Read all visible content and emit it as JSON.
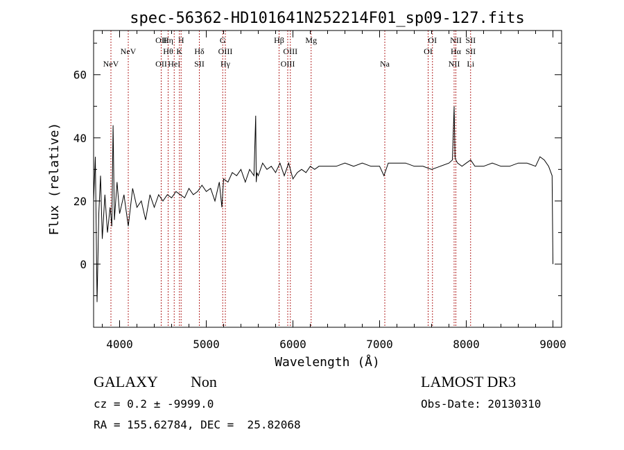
{
  "chart_data": {
    "type": "line",
    "title": "spec-56362-HD101641N252214F01_sp09-127.fits",
    "xlabel": "Wavelength (Å)",
    "ylabel": "Flux (relative)",
    "xlim": [
      3700,
      9100
    ],
    "ylim": [
      -20,
      74
    ],
    "xticks": [
      4000,
      5000,
      6000,
      7000,
      8000,
      9000
    ],
    "xtick_labels": [
      "4000",
      "5000",
      "6000",
      "7000",
      "8000",
      "9000"
    ],
    "yticks": [
      0,
      20,
      40,
      60
    ],
    "ytick_labels": [
      "0",
      "20",
      "40",
      "60"
    ],
    "series": [
      {
        "name": "flux",
        "x": [
          3700,
          3720,
          3740,
          3760,
          3780,
          3800,
          3830,
          3860,
          3890,
          3910,
          3925,
          3940,
          3970,
          4000,
          4050,
          4100,
          4150,
          4200,
          4250,
          4300,
          4350,
          4400,
          4450,
          4500,
          4550,
          4600,
          4650,
          4700,
          4750,
          4800,
          4850,
          4900,
          4950,
          5000,
          5050,
          5100,
          5150,
          5180,
          5200,
          5250,
          5300,
          5350,
          5400,
          5450,
          5500,
          5550,
          5570,
          5577,
          5585,
          5600,
          5650,
          5700,
          5750,
          5800,
          5850,
          5900,
          5950,
          6000,
          6050,
          6100,
          6150,
          6200,
          6250,
          6300,
          6400,
          6500,
          6600,
          6700,
          6800,
          6900,
          7000,
          7050,
          7100,
          7200,
          7300,
          7400,
          7500,
          7600,
          7700,
          7800,
          7840,
          7860,
          7870,
          7880,
          7900,
          7950,
          8000,
          8050,
          8100,
          8200,
          8300,
          8400,
          8500,
          8600,
          8700,
          8800,
          8850,
          8900,
          8950,
          8990,
          9000
        ],
        "y": [
          20,
          34,
          -12,
          16,
          28,
          8,
          22,
          10,
          18,
          12,
          44,
          14,
          26,
          16,
          22,
          12,
          24,
          18,
          20,
          14,
          22,
          18,
          22,
          20,
          22,
          21,
          23,
          22,
          21,
          24,
          22,
          23,
          25,
          23,
          24,
          20,
          26,
          18,
          27,
          26,
          29,
          28,
          30,
          26,
          30,
          28,
          47,
          26,
          29,
          28,
          32,
          30,
          31,
          29,
          32,
          28,
          32,
          27,
          29,
          30,
          29,
          31,
          30,
          31,
          31,
          31,
          32,
          31,
          32,
          31,
          31,
          28,
          32,
          32,
          32,
          31,
          31,
          30,
          31,
          32,
          33,
          50,
          34,
          33,
          32,
          31,
          32,
          33,
          31,
          31,
          32,
          31,
          31,
          32,
          32,
          31,
          34,
          33,
          31,
          28,
          0
        ]
      }
    ],
    "lines": [
      {
        "name": "NeV",
        "wavelength": 3900,
        "label_row": 3
      },
      {
        "name": "NeV",
        "wavelength": 4100,
        "label_row": 2
      },
      {
        "name": "OII",
        "wavelength": 4480,
        "label_row": 1
      },
      {
        "name": "OII",
        "wavelength": 4480,
        "label_row": 3
      },
      {
        "name": "Hη",
        "wavelength": 4560,
        "label_row": 1
      },
      {
        "name": "Hθ",
        "wavelength": 4560,
        "label_row": 2
      },
      {
        "name": "HeI",
        "wavelength": 4630,
        "label_row": 3
      },
      {
        "name": "H",
        "wavelength": 4710,
        "label_row": 1
      },
      {
        "name": "K",
        "wavelength": 4690,
        "label_row": 2
      },
      {
        "name": "Hδ",
        "wavelength": 4920,
        "label_row": 2
      },
      {
        "name": "SII",
        "wavelength": 4920,
        "label_row": 3
      },
      {
        "name": "G",
        "wavelength": 5190,
        "label_row": 1
      },
      {
        "name": "OIII",
        "wavelength": 5220,
        "label_row": 2
      },
      {
        "name": "Hγ",
        "wavelength": 5220,
        "label_row": 3
      },
      {
        "name": "Hβ",
        "wavelength": 5840,
        "label_row": 1
      },
      {
        "name": "OIII",
        "wavelength": 5970,
        "label_row": 2
      },
      {
        "name": "OIII",
        "wavelength": 5940,
        "label_row": 3
      },
      {
        "name": "Mg",
        "wavelength": 6210,
        "label_row": 1
      },
      {
        "name": "Na",
        "wavelength": 7060,
        "label_row": 3
      },
      {
        "name": "OI",
        "wavelength": 7610,
        "label_row": 1
      },
      {
        "name": "OI",
        "wavelength": 7560,
        "label_row": 2
      },
      {
        "name": "NII",
        "wavelength": 7880,
        "label_row": 1
      },
      {
        "name": "Hα",
        "wavelength": 7880,
        "label_row": 2
      },
      {
        "name": "NII",
        "wavelength": 7860,
        "label_row": 3
      },
      {
        "name": "SII",
        "wavelength": 8050,
        "label_row": 1
      },
      {
        "name": "SII",
        "wavelength": 8050,
        "label_row": 2
      },
      {
        "name": "Li",
        "wavelength": 8050,
        "label_row": 3
      }
    ],
    "line_colors": {
      "spectrum": "#000000",
      "markers": "#b22222"
    }
  },
  "footer": {
    "object_class": "GALAXY",
    "subclass": "Non",
    "survey": "LAMOST DR3",
    "redshift": "cz = 0.2 ± -9999.0",
    "obs_date": "Obs-Date: 20130310",
    "coords": "RA = 155.62784, DEC =  25.82068"
  }
}
